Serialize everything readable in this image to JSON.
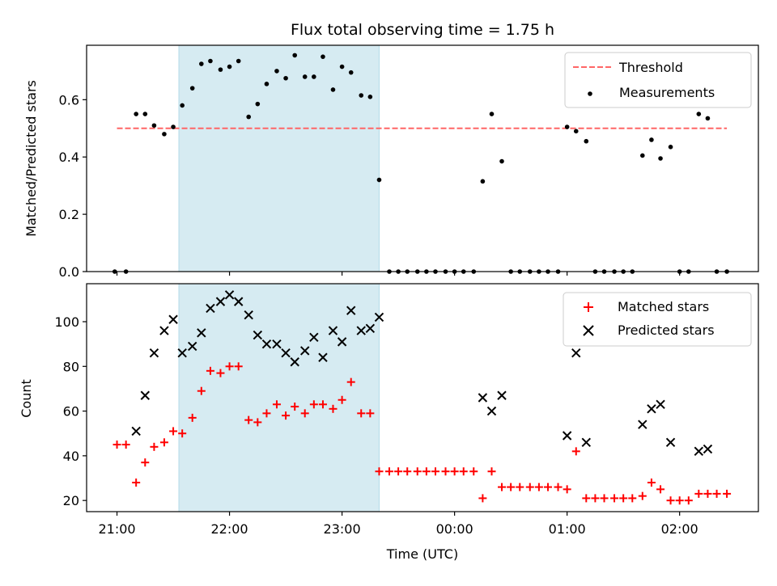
{
  "chart_data": [
    {
      "type": "scatter",
      "title": "Flux total observing time = 1.75 h",
      "ylabel": "Matched/Predicted stars",
      "xlabel": "",
      "x_unit": "hours since 21:00 UTC",
      "xlim": [
        -0.27,
        5.7
      ],
      "ylim": [
        0,
        0.79
      ],
      "yticks": [
        0.0,
        0.2,
        0.4,
        0.6
      ],
      "ytick_labels": [
        "0.0",
        "0.2",
        "0.4",
        "0.6"
      ],
      "xticks": [
        0,
        1,
        2,
        3,
        4,
        5
      ],
      "grid": false,
      "legend_position": "top-right",
      "shaded_x": [
        0.55,
        2.33
      ],
      "shaded_color": "#add8e6",
      "threshold": {
        "name": "Threshold",
        "value": 0.5,
        "x": [
          0.0,
          5.42
        ],
        "color": "#ff6666"
      },
      "series": [
        {
          "name": "Measurements",
          "color": "#000000",
          "marker": "dot",
          "points": [
            [
              -0.02,
              0
            ],
            [
              0.08,
              0
            ],
            [
              0.17,
              0.55
            ],
            [
              0.25,
              0.55
            ],
            [
              0.33,
              0.51
            ],
            [
              0.42,
              0.48
            ],
            [
              0.5,
              0.505
            ],
            [
              0.58,
              0.58
            ],
            [
              0.67,
              0.64
            ],
            [
              0.75,
              0.725
            ],
            [
              0.83,
              0.735
            ],
            [
              0.92,
              0.705
            ],
            [
              1.0,
              0.715
            ],
            [
              1.08,
              0.735
            ],
            [
              1.17,
              0.54
            ],
            [
              1.25,
              0.585
            ],
            [
              1.33,
              0.655
            ],
            [
              1.42,
              0.7
            ],
            [
              1.5,
              0.675
            ],
            [
              1.58,
              0.755
            ],
            [
              1.67,
              0.68
            ],
            [
              1.75,
              0.68
            ],
            [
              1.83,
              0.75
            ],
            [
              1.92,
              0.635
            ],
            [
              2.0,
              0.715
            ],
            [
              2.08,
              0.695
            ],
            [
              2.17,
              0.615
            ],
            [
              2.25,
              0.61
            ],
            [
              2.33,
              0.32
            ],
            [
              2.42,
              0
            ],
            [
              2.5,
              0
            ],
            [
              2.58,
              0
            ],
            [
              2.67,
              0
            ],
            [
              2.75,
              0
            ],
            [
              2.83,
              0
            ],
            [
              2.92,
              0
            ],
            [
              3.0,
              0
            ],
            [
              3.08,
              0
            ],
            [
              3.17,
              0
            ],
            [
              3.25,
              0.315
            ],
            [
              3.33,
              0.55
            ],
            [
              3.42,
              0.385
            ],
            [
              3.5,
              0
            ],
            [
              3.58,
              0
            ],
            [
              3.67,
              0
            ],
            [
              3.75,
              0
            ],
            [
              3.83,
              0
            ],
            [
              3.92,
              0
            ],
            [
              4.0,
              0.505
            ],
            [
              4.08,
              0.49
            ],
            [
              4.17,
              0.455
            ],
            [
              4.25,
              0
            ],
            [
              4.33,
              0
            ],
            [
              4.42,
              0
            ],
            [
              4.5,
              0
            ],
            [
              4.58,
              0
            ],
            [
              4.67,
              0.405
            ],
            [
              4.75,
              0.46
            ],
            [
              4.83,
              0.395
            ],
            [
              4.92,
              0.435
            ],
            [
              5.0,
              0
            ],
            [
              5.08,
              0
            ],
            [
              5.17,
              0.55
            ],
            [
              5.25,
              0.535
            ],
            [
              5.33,
              0
            ],
            [
              5.42,
              0
            ]
          ]
        }
      ]
    },
    {
      "type": "scatter",
      "title": "",
      "ylabel": "Count",
      "xlabel": "Time (UTC)",
      "x_unit": "hours since 21:00 UTC",
      "xlim": [
        -0.27,
        5.7
      ],
      "ylim": [
        15,
        117
      ],
      "yticks": [
        20,
        40,
        60,
        80,
        100
      ],
      "ytick_labels": [
        "20",
        "40",
        "60",
        "80",
        "100"
      ],
      "xticks": [
        0,
        1,
        2,
        3,
        4,
        5
      ],
      "xtick_labels": [
        "21:00",
        "22:00",
        "23:00",
        "00:00",
        "01:00",
        "02:00"
      ],
      "grid": false,
      "legend_position": "top-right",
      "shaded_x": [
        0.55,
        2.33
      ],
      "shaded_color": "#add8e6",
      "series": [
        {
          "name": "Matched stars",
          "color": "#ff0000",
          "marker": "plus",
          "points": [
            [
              0.0,
              45
            ],
            [
              0.08,
              45
            ],
            [
              0.17,
              28
            ],
            [
              0.25,
              37
            ],
            [
              0.33,
              44
            ],
            [
              0.42,
              46
            ],
            [
              0.5,
              51
            ],
            [
              0.58,
              50
            ],
            [
              0.67,
              57
            ],
            [
              0.75,
              69
            ],
            [
              0.83,
              78
            ],
            [
              0.92,
              77
            ],
            [
              1.0,
              80
            ],
            [
              1.08,
              80
            ],
            [
              1.17,
              56
            ],
            [
              1.25,
              55
            ],
            [
              1.33,
              59
            ],
            [
              1.42,
              63
            ],
            [
              1.5,
              58
            ],
            [
              1.58,
              62
            ],
            [
              1.67,
              59
            ],
            [
              1.75,
              63
            ],
            [
              1.83,
              63
            ],
            [
              1.92,
              61
            ],
            [
              2.0,
              65
            ],
            [
              2.08,
              73
            ],
            [
              2.17,
              59
            ],
            [
              2.25,
              59
            ],
            [
              2.33,
              33
            ],
            [
              2.42,
              33
            ],
            [
              2.5,
              33
            ],
            [
              2.58,
              33
            ],
            [
              2.67,
              33
            ],
            [
              2.75,
              33
            ],
            [
              2.83,
              33
            ],
            [
              2.92,
              33
            ],
            [
              3.0,
              33
            ],
            [
              3.08,
              33
            ],
            [
              3.17,
              33
            ],
            [
              3.25,
              21
            ],
            [
              3.33,
              33
            ],
            [
              3.42,
              26
            ],
            [
              3.5,
              26
            ],
            [
              3.58,
              26
            ],
            [
              3.67,
              26
            ],
            [
              3.75,
              26
            ],
            [
              3.83,
              26
            ],
            [
              3.92,
              26
            ],
            [
              4.0,
              25
            ],
            [
              4.08,
              42
            ],
            [
              4.17,
              21
            ],
            [
              4.25,
              21
            ],
            [
              4.33,
              21
            ],
            [
              4.42,
              21
            ],
            [
              4.5,
              21
            ],
            [
              4.58,
              21
            ],
            [
              4.67,
              22
            ],
            [
              4.75,
              28
            ],
            [
              4.83,
              25
            ],
            [
              4.92,
              20
            ],
            [
              5.0,
              20
            ],
            [
              5.08,
              20
            ],
            [
              5.17,
              23
            ],
            [
              5.25,
              23
            ],
            [
              5.33,
              23
            ],
            [
              5.42,
              23
            ]
          ]
        },
        {
          "name": "Predicted stars",
          "color": "#000000",
          "marker": "x",
          "points": [
            [
              0.17,
              51
            ],
            [
              0.25,
              67
            ],
            [
              0.33,
              86
            ],
            [
              0.42,
              96
            ],
            [
              0.5,
              101
            ],
            [
              0.58,
              86
            ],
            [
              0.67,
              89
            ],
            [
              0.75,
              95
            ],
            [
              0.83,
              106
            ],
            [
              0.92,
              109
            ],
            [
              1.0,
              112
            ],
            [
              1.08,
              109
            ],
            [
              1.17,
              103
            ],
            [
              1.25,
              94
            ],
            [
              1.33,
              90
            ],
            [
              1.42,
              90
            ],
            [
              1.5,
              86
            ],
            [
              1.58,
              82
            ],
            [
              1.67,
              87
            ],
            [
              1.75,
              93
            ],
            [
              1.83,
              84
            ],
            [
              1.92,
              96
            ],
            [
              2.0,
              91
            ],
            [
              2.08,
              105
            ],
            [
              2.17,
              96
            ],
            [
              2.25,
              97
            ],
            [
              2.33,
              102
            ],
            [
              3.25,
              66
            ],
            [
              3.33,
              60
            ],
            [
              3.42,
              67
            ],
            [
              4.0,
              49
            ],
            [
              4.08,
              86
            ],
            [
              4.17,
              46
            ],
            [
              4.67,
              54
            ],
            [
              4.75,
              61
            ],
            [
              4.83,
              63
            ],
            [
              4.92,
              46
            ],
            [
              5.17,
              42
            ],
            [
              5.25,
              43
            ]
          ]
        }
      ]
    }
  ]
}
